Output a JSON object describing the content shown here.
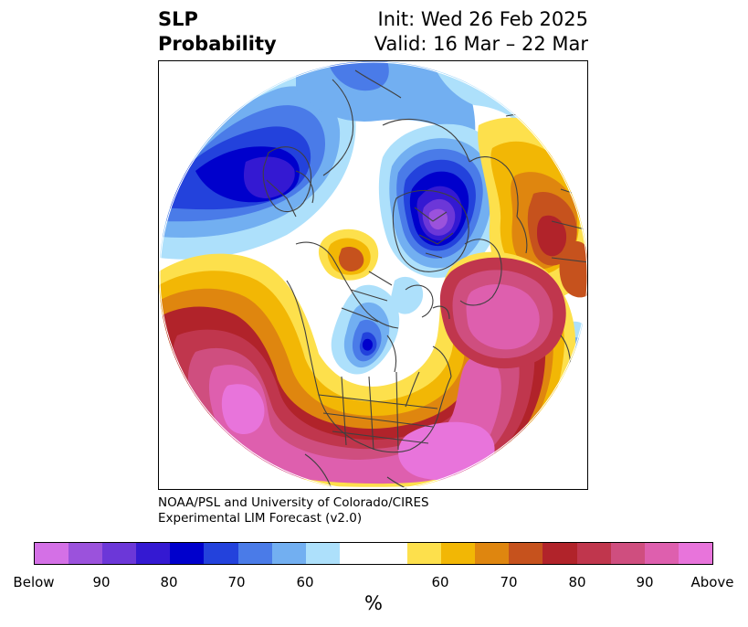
{
  "header": {
    "title_line1": "SLP",
    "title_line2": "Probability",
    "init": "Init: Wed 26 Feb 2025",
    "valid": "Valid: 16 Mar – 22 Mar"
  },
  "credit": {
    "line1": "NOAA/PSL and University of Colorado/CIRES",
    "line2": "Experimental LIM Forecast (v2.0)"
  },
  "colorbar": {
    "colors_below": [
      "#d470e6",
      "#9b52dc",
      "#6c37d8",
      "#3419d2",
      "#0000cc",
      "#2342dc",
      "#4a7be8",
      "#72aff1",
      "#ade0fb"
    ],
    "color_neutral": "#ffffff",
    "colors_above": [
      "#fde04c",
      "#f2b705",
      "#df860f",
      "#c6521d",
      "#b1232a",
      "#c0364d",
      "#cf4e7f",
      "#de5fae",
      "#e874db"
    ],
    "tick_labels": [
      "Below",
      "90",
      "80",
      "70",
      "60",
      "60",
      "70",
      "80",
      "90",
      "Above"
    ],
    "unit": "%"
  }
}
